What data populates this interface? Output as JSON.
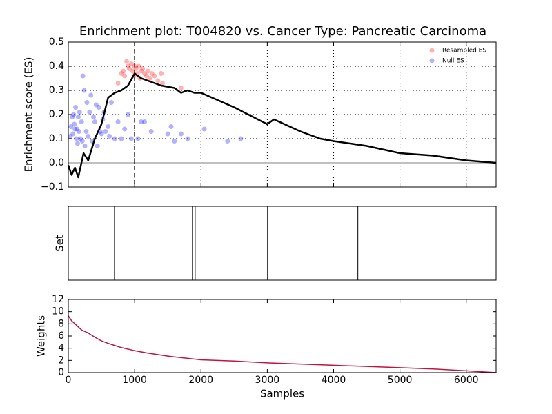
{
  "chart_data": [
    {
      "type": "line",
      "title": "Enrichment plot: T004820 vs. Cancer Type: Pancreatic Carcinoma",
      "ylabel": "Enrichment score (ES)",
      "xlim": [
        0,
        6450
      ],
      "ylim": [
        -0.1,
        0.5
      ],
      "xticks": [
        1000,
        2000,
        3000,
        4000,
        5000,
        6000
      ],
      "show_xtick_labels": false,
      "yticks": [
        {
          "value": -0.1,
          "label": "−0.1"
        },
        {
          "value": 0,
          "label": "0.0"
        },
        0.1,
        0.2,
        0.3,
        0.4,
        0.5
      ],
      "grid": true,
      "legend": "upper right",
      "vline": 1000,
      "hline": 0,
      "alpha": 0.3,
      "series": [
        {
          "type": "scatter",
          "name": "Resampled ES",
          "color": "#ff0000",
          "x": [
            800,
            850,
            880,
            900,
            920,
            950,
            970,
            990,
            1000,
            1020,
            1040,
            1060,
            1080,
            1100,
            1120,
            1150,
            1180,
            1200,
            1230,
            1260,
            1300,
            1350,
            1400,
            1420,
            1700,
            750,
            830
          ],
          "values": [
            0.37,
            0.36,
            0.42,
            0.4,
            0.39,
            0.41,
            0.38,
            0.36,
            0.4,
            0.39,
            0.37,
            0.4,
            0.35,
            0.38,
            0.39,
            0.37,
            0.36,
            0.38,
            0.35,
            0.37,
            0.36,
            0.34,
            0.37,
            0.33,
            0.31,
            0.33,
            0.38
          ]
        },
        {
          "type": "scatter",
          "name": "Null ES",
          "color": "#0000ff",
          "x": [
            30,
            40,
            60,
            70,
            80,
            90,
            100,
            110,
            120,
            130,
            140,
            150,
            160,
            170,
            180,
            200,
            210,
            220,
            240,
            250,
            270,
            280,
            300,
            320,
            340,
            360,
            380,
            400,
            420,
            440,
            460,
            480,
            500,
            520,
            540,
            560,
            600,
            620,
            650,
            700,
            750,
            800,
            850,
            900,
            950,
            1050,
            1100,
            1150,
            1250,
            1500,
            1550,
            1600,
            1700,
            1800,
            2050,
            2400,
            2600
          ],
          "values": [
            0.11,
            0.15,
            0.19,
            0.12,
            0.2,
            0.16,
            0.14,
            0.23,
            0.1,
            0.14,
            0.08,
            0.19,
            0.13,
            0.21,
            0.1,
            0.17,
            0.09,
            0.36,
            0.3,
            0.07,
            0.13,
            0.25,
            0.11,
            0.21,
            0.28,
            0.09,
            0.19,
            0.17,
            0.24,
            0.07,
            0.23,
            0.13,
            0.12,
            0.18,
            0.21,
            0.13,
            0.15,
            0.11,
            0.25,
            0.1,
            0.17,
            0.1,
            0.14,
            0.2,
            0.1,
            0.1,
            0.17,
            0.17,
            0.13,
            0.12,
            0.15,
            0.09,
            0.12,
            0.1,
            0.14,
            0.09,
            0.1
          ]
        },
        {
          "type": "line",
          "color": "#000000",
          "x": [
            0,
            50,
            100,
            150,
            230,
            300,
            400,
            500,
            600,
            700,
            800,
            900,
            1000,
            1100,
            1200,
            1400,
            1600,
            1700,
            1800,
            1900,
            2000,
            2500,
            3000,
            3100,
            3500,
            3800,
            4000,
            4500,
            5000,
            5500,
            6000,
            6450
          ],
          "values": [
            -0.01,
            -0.05,
            -0.02,
            -0.06,
            0.04,
            0.01,
            0.1,
            0.16,
            0.27,
            0.29,
            0.3,
            0.32,
            0.37,
            0.35,
            0.34,
            0.32,
            0.31,
            0.29,
            0.3,
            0.29,
            0.29,
            0.23,
            0.16,
            0.18,
            0.13,
            0.1,
            0.09,
            0.07,
            0.04,
            0.03,
            0.01,
            0.0
          ]
        }
      ]
    },
    {
      "type": "rug",
      "ylabel": "Set",
      "xlim": [
        0,
        6450
      ],
      "color": "#000000",
      "values": [
        696,
        1871,
        1913,
        3004,
        4366
      ]
    },
    {
      "type": "line",
      "xlabel": "Samples",
      "ylabel": "Weights",
      "xlim": [
        0,
        6450
      ],
      "ylim": [
        0,
        12
      ],
      "xticks": [
        0,
        1000,
        2000,
        3000,
        4000,
        5000,
        6000
      ],
      "show_xtick_labels": true,
      "yticks": [
        0,
        2,
        4,
        6,
        8,
        10,
        12
      ],
      "grid": false,
      "series": [
        {
          "type": "line",
          "color": "#c0143c",
          "x": [
            0,
            50,
            100,
            200,
            300,
            400,
            500,
            600,
            800,
            1000,
            1200,
            1500,
            2000,
            2500,
            3000,
            3500,
            4000,
            4500,
            5000,
            5500,
            6000,
            6450
          ],
          "values": [
            9.3,
            8.5,
            8.0,
            7.0,
            6.5,
            5.8,
            5.2,
            4.8,
            4.1,
            3.6,
            3.2,
            2.7,
            2.1,
            1.9,
            1.6,
            1.4,
            1.2,
            1.0,
            0.8,
            0.6,
            0.3,
            0.0
          ]
        }
      ]
    }
  ]
}
